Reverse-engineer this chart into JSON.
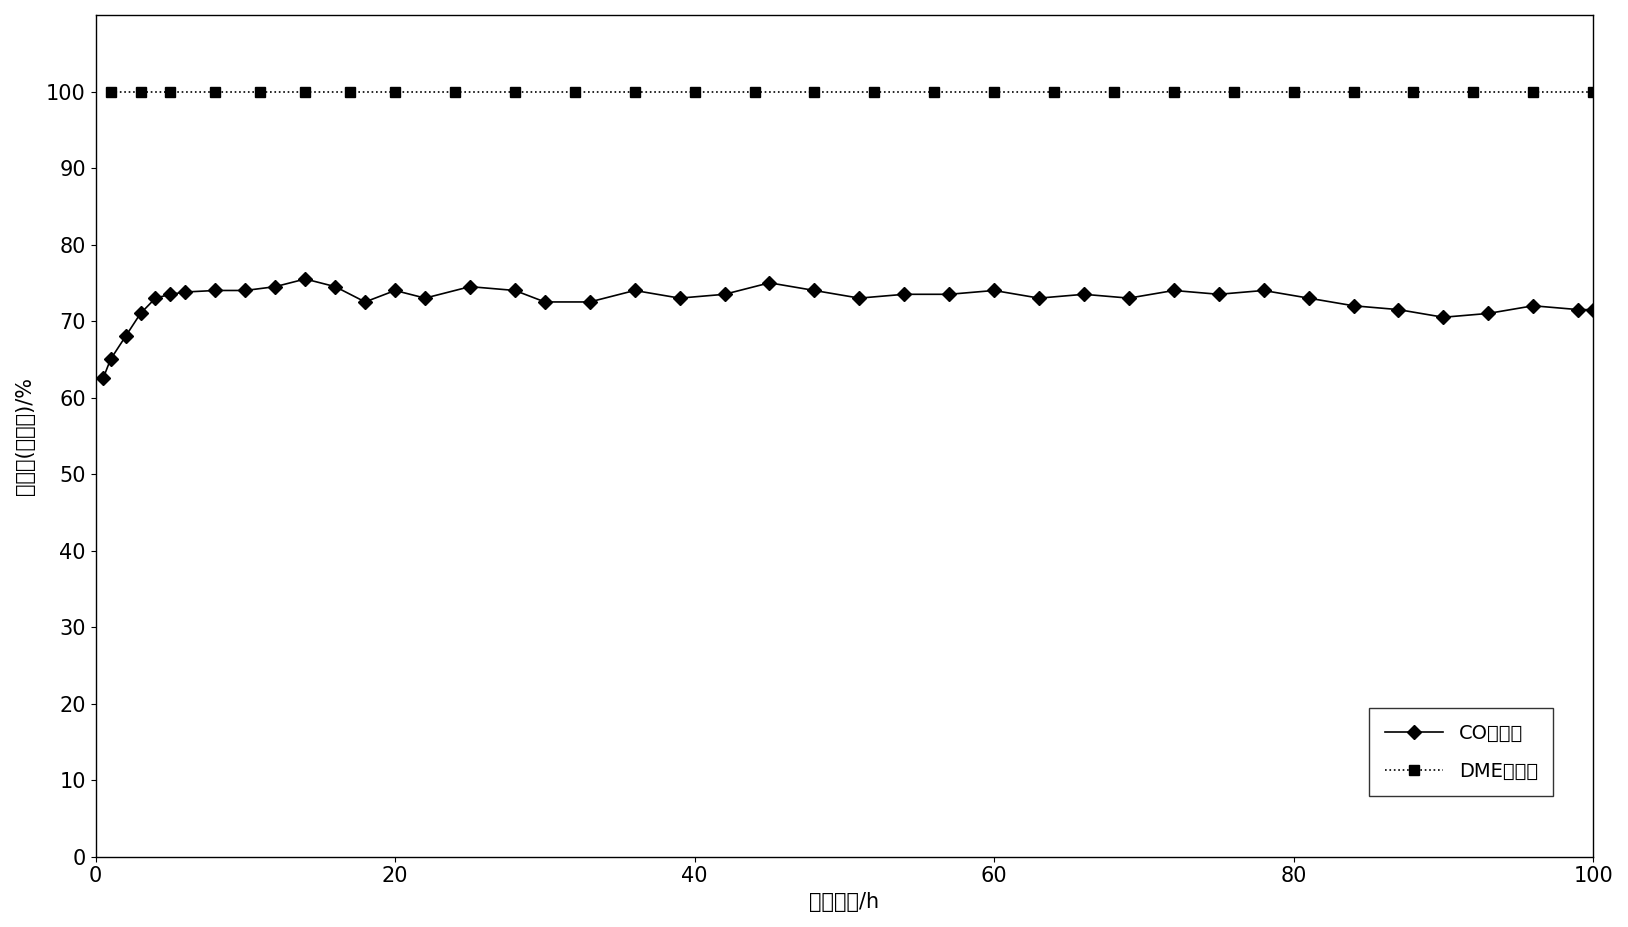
{
  "co_x": [
    0.5,
    1,
    2,
    3,
    4,
    5,
    6,
    8,
    10,
    12,
    14,
    16,
    18,
    20,
    22,
    25,
    28,
    30,
    33,
    36,
    39,
    42,
    45,
    48,
    51,
    54,
    57,
    60,
    63,
    66,
    69,
    72,
    75,
    78,
    81,
    84,
    87,
    90,
    93,
    96,
    99,
    100
  ],
  "co_y": [
    62.5,
    65,
    68,
    71,
    73,
    73.5,
    73.8,
    74,
    74,
    74.5,
    75.5,
    74.5,
    72.5,
    74,
    73,
    74.5,
    74,
    72.5,
    72.5,
    74,
    73,
    73.5,
    75,
    74,
    73,
    73.5,
    73.5,
    74,
    73,
    73.5,
    73,
    74,
    73.5,
    74,
    73,
    72,
    71.5,
    70.5,
    71,
    72,
    71.5,
    71.5
  ],
  "dme_x": [
    1,
    3,
    5,
    8,
    11,
    14,
    17,
    20,
    24,
    28,
    32,
    36,
    40,
    44,
    48,
    52,
    56,
    60,
    64,
    68,
    72,
    76,
    80,
    84,
    88,
    92,
    96,
    100
  ],
  "dme_y": [
    100,
    100,
    100,
    100,
    100,
    100,
    100,
    100,
    100,
    100,
    100,
    100,
    100,
    100,
    100,
    100,
    100,
    100,
    100,
    100,
    100,
    100,
    100,
    100,
    100,
    100,
    100,
    100
  ],
  "co_label": "CO转化率",
  "dme_label": "DME选择性",
  "xlabel": "反应时间/h",
  "ylabel": "转化率(选择性)/%",
  "xlim": [
    0,
    100
  ],
  "ylim": [
    0,
    110
  ],
  "yticks": [
    0,
    10,
    20,
    30,
    40,
    50,
    60,
    70,
    80,
    90,
    100
  ],
  "xticks": [
    0,
    20,
    40,
    60,
    80,
    100
  ],
  "line_color": "#000000",
  "marker_co": "D",
  "marker_dme": "s",
  "marker_size_co": 7,
  "marker_size_dme": 7,
  "linewidth": 1.2,
  "background_color": "#ffffff",
  "xlabel_fontsize": 15,
  "ylabel_fontsize": 15,
  "tick_fontsize": 15,
  "legend_fontsize": 14
}
